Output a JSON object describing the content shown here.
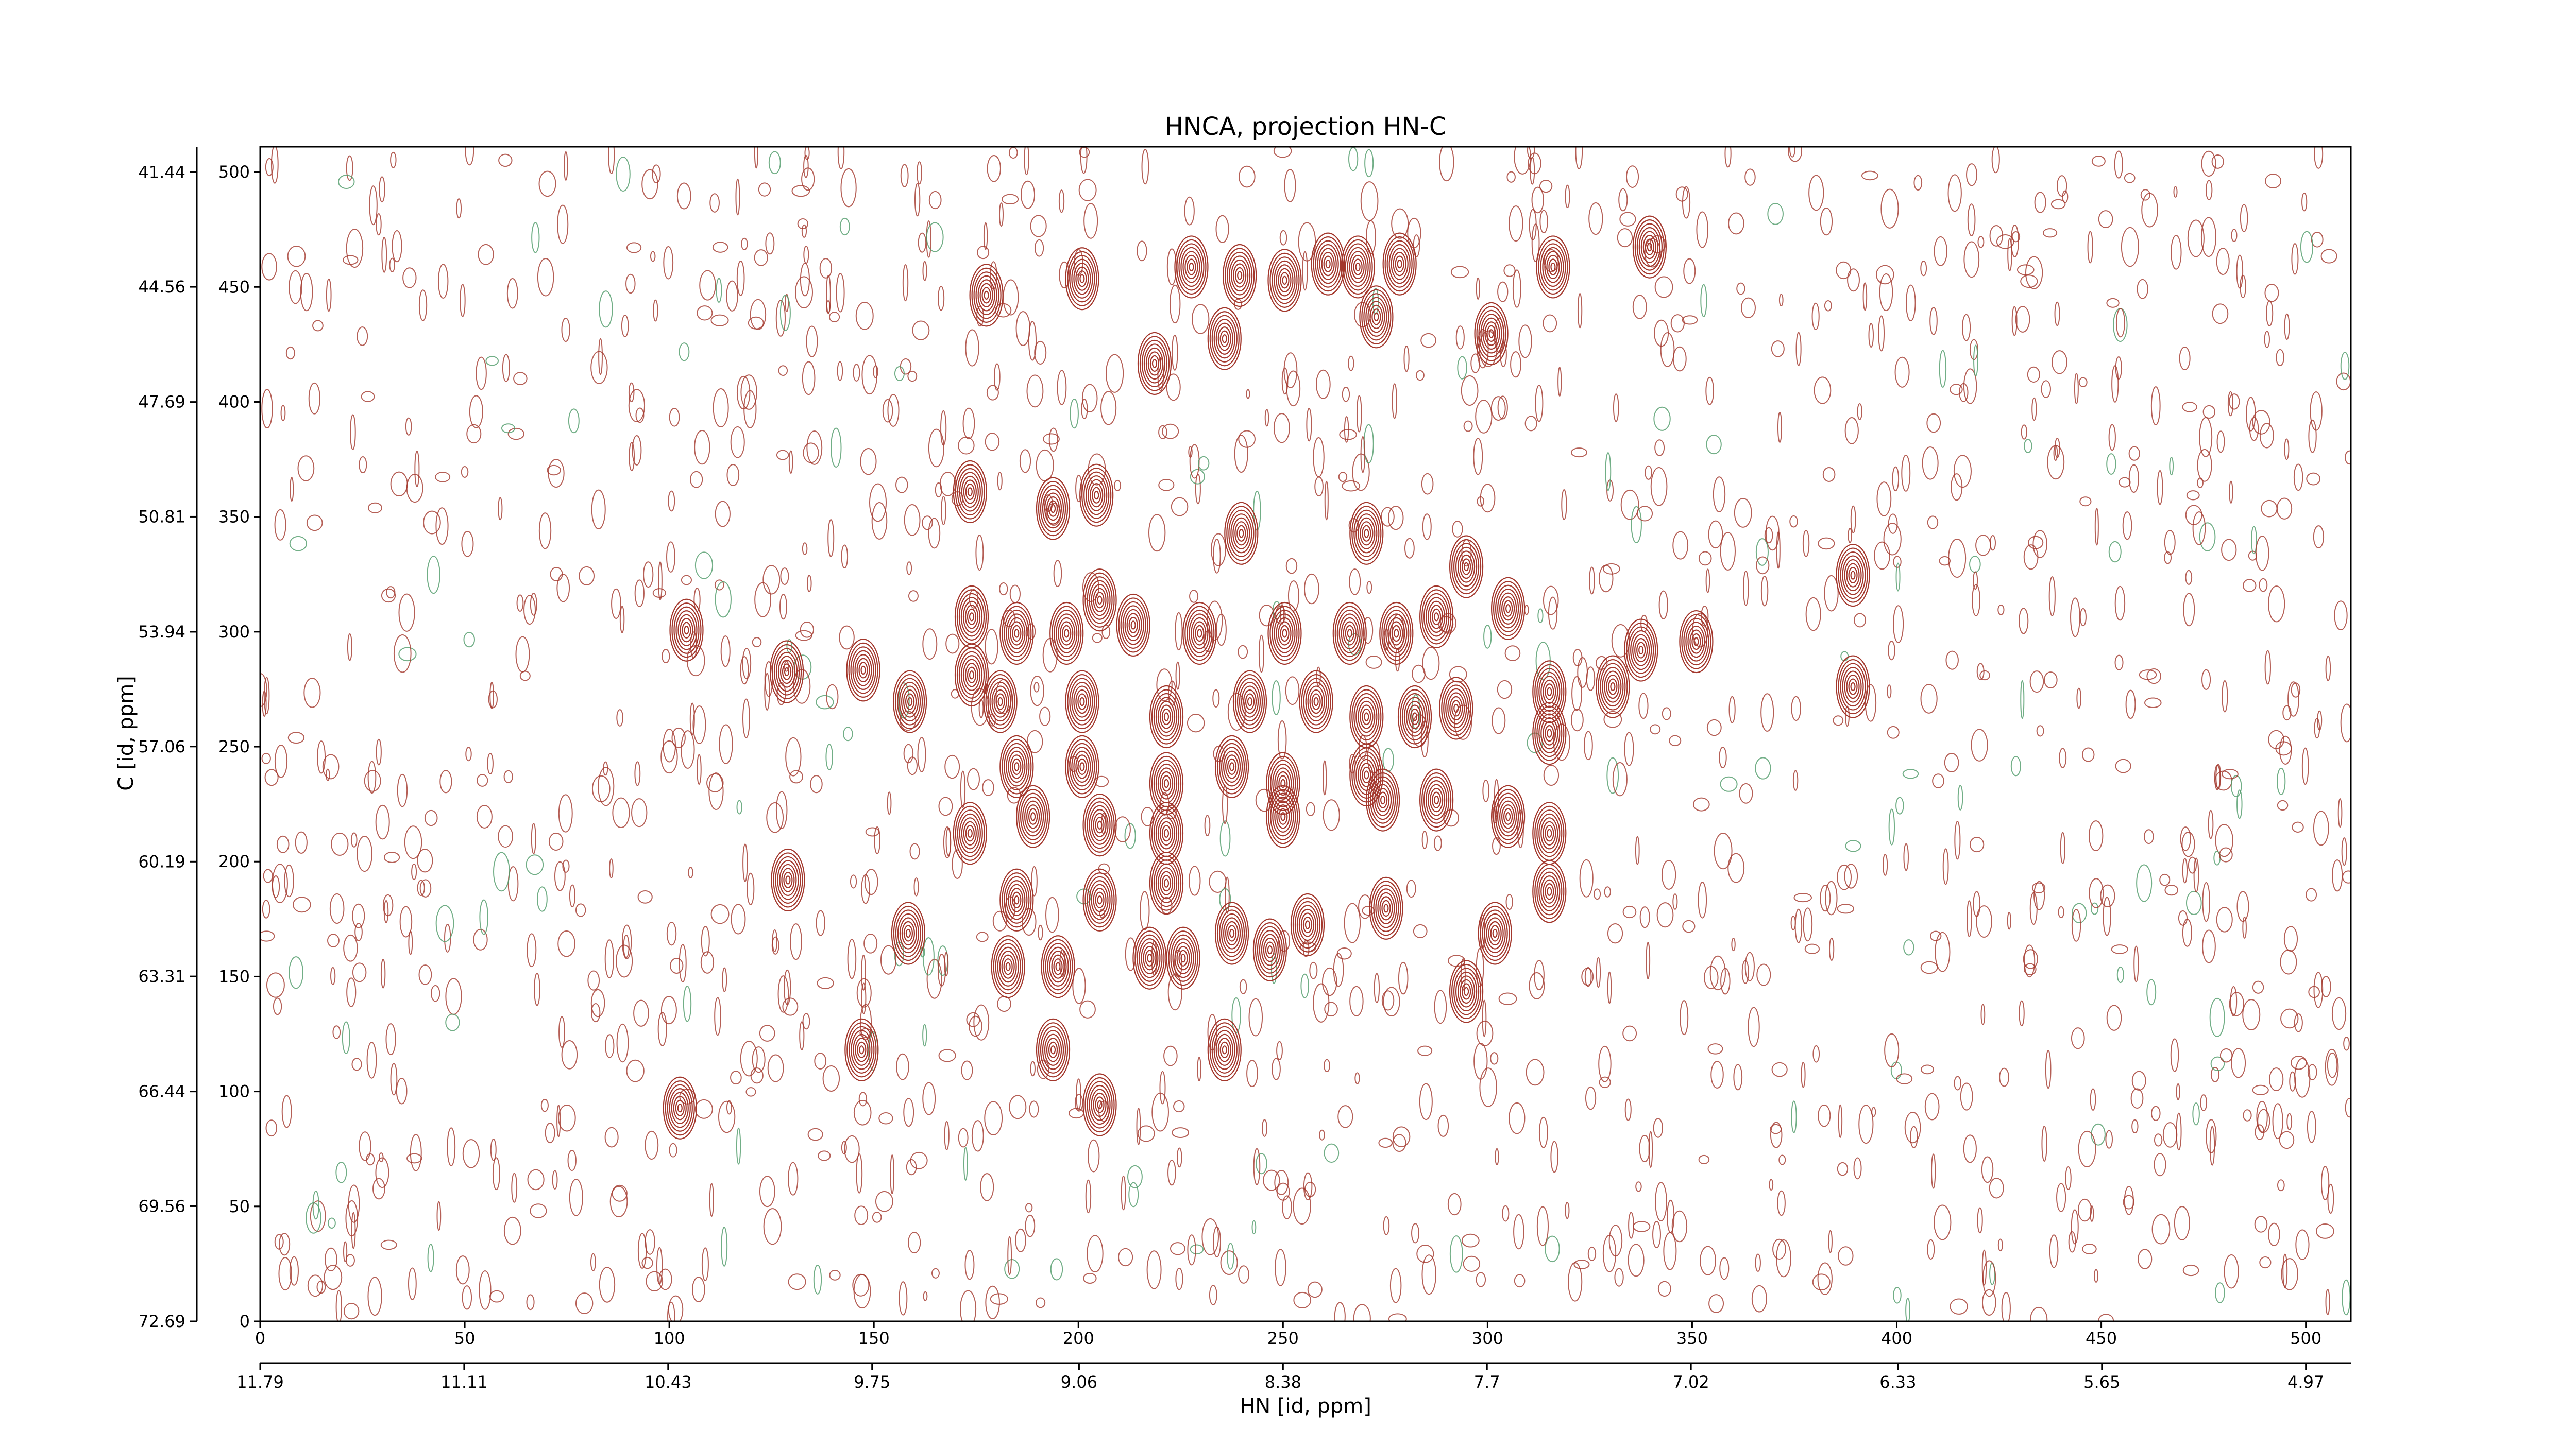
{
  "chart_data": {
    "type": "contour",
    "title": "HNCA, projection HN-C",
    "x_label": "HN [id, ppm]",
    "y_label": "C [id, ppm]",
    "xlim": [
      0,
      511
    ],
    "ylim": [
      0,
      511
    ],
    "xticks": [
      0,
      50,
      100,
      150,
      200,
      250,
      300,
      350,
      400,
      450,
      500
    ],
    "yticks": [
      0,
      50,
      100,
      150,
      200,
      250,
      300,
      350,
      400,
      450,
      500
    ],
    "x2lim": [
      11.79,
      4.82
    ],
    "x2ticks": [
      11.79,
      11.11,
      10.43,
      9.75,
      9.06,
      8.38,
      7.7,
      7.02,
      6.33,
      5.65,
      4.97
    ],
    "y2lim": [
      72.69,
      40.75
    ],
    "y2ticks": [
      72.69,
      69.56,
      66.44,
      63.31,
      60.19,
      57.06,
      53.94,
      50.81,
      47.69,
      44.56,
      41.44
    ],
    "positive_color": "#a3372c",
    "negative_color": "#4e9a68",
    "grid": false,
    "peaks": {
      "x": [
        177.5,
        200.9,
        227.6,
        239.4,
        250.4,
        261,
        268.3,
        278.5,
        316,
        339.6,
        218.6,
        235.7,
        272.8,
        300.9,
        173.5,
        193.8,
        204.4,
        239.8,
        270.4,
        294.8,
        305,
        389.3,
        104.2,
        128.7,
        147.4,
        158.8,
        173.9,
        173.9,
        184.9,
        197.1,
        205.2,
        213.4,
        229.6,
        250.4,
        266.3,
        277.7,
        287.5,
        315.1,
        330.6,
        337.5,
        351,
        389.3,
        180.9,
        200.9,
        221.5,
        241.9,
        258.1,
        270.4,
        282.2,
        292.3,
        184.9,
        200.9,
        221.5,
        237.5,
        250,
        270.4,
        315.1,
        173.5,
        188.9,
        205.2,
        221.5,
        250,
        274.4,
        287.5,
        305,
        315.1,
        129,
        158.4,
        184.9,
        205.2,
        221.5,
        237.5,
        256,
        275.2,
        301.8,
        315.1,
        182.8,
        195,
        217.4,
        225.6,
        246.8,
        294.8,
        147,
        235.7,
        193.8,
        102.6,
        205.2
      ],
      "y": [
        446.4,
        453.6,
        458.7,
        455,
        452.9,
        460,
        458.7,
        460,
        458.7,
        467.4,
        416.7,
        427.5,
        437,
        429.7,
        360.9,
        353.6,
        359.4,
        342.8,
        342.8,
        328.3,
        310.1,
        324.6,
        300.7,
        282.6,
        283.3,
        269.6,
        306.5,
        281.2,
        299.3,
        299.3,
        313.8,
        302.9,
        299.3,
        299.3,
        299.3,
        299.3,
        306.5,
        273.9,
        276.1,
        292,
        295.7,
        276.1,
        269.6,
        269.6,
        263,
        269.6,
        269.6,
        263,
        263,
        266.7,
        241.3,
        241.3,
        234,
        241.3,
        234,
        237.7,
        255.8,
        212.3,
        219.6,
        215.9,
        212.3,
        219.6,
        226.8,
        226.8,
        219.6,
        212.3,
        192,
        168.8,
        183.3,
        183.3,
        190.6,
        168.8,
        172.5,
        179.7,
        168.8,
        187,
        154.3,
        154.3,
        158,
        158,
        161.6,
        143.5,
        118.1,
        118.1,
        118.1,
        92.8,
        94.2
      ]
    }
  }
}
